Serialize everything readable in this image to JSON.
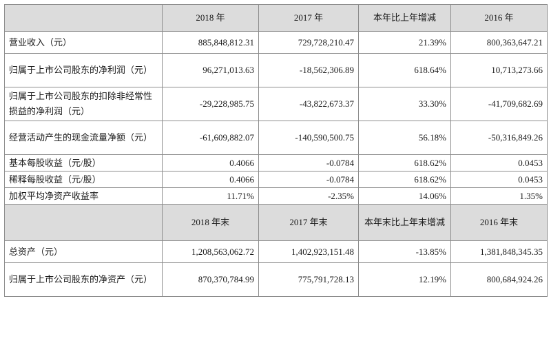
{
  "table1": {
    "headers": [
      "",
      "2018 年",
      "2017 年",
      "本年比上年增减",
      "2016 年"
    ],
    "rows": [
      {
        "label": "营业收入（元）",
        "c2018": "885,848,812.31",
        "c2017": "729,728,210.47",
        "change": "21.39%",
        "c2016": "800,363,647.21"
      },
      {
        "label": "归属于上市公司股东的净利润（元）",
        "c2018": "96,271,013.63",
        "c2017": "-18,562,306.89",
        "change": "618.64%",
        "c2016": "10,713,273.66"
      },
      {
        "label": "归属于上市公司股东的扣除非经常性损益的净利润（元）",
        "c2018": "-29,228,985.75",
        "c2017": "-43,822,673.37",
        "change": "33.30%",
        "c2016": "-41,709,682.69"
      },
      {
        "label": "经营活动产生的现金流量净额（元）",
        "c2018": "-61,609,882.07",
        "c2017": "-140,590,500.75",
        "change": "56.18%",
        "c2016": "-50,316,849.26"
      },
      {
        "label": "基本每股收益（元/股）",
        "c2018": "0.4066",
        "c2017": "-0.0784",
        "change": "618.62%",
        "c2016": "0.0453"
      },
      {
        "label": "稀释每股收益（元/股）",
        "c2018": "0.4066",
        "c2017": "-0.0784",
        "change": "618.62%",
        "c2016": "0.0453"
      },
      {
        "label": "加权平均净资产收益率",
        "c2018": "11.71%",
        "c2017": "-2.35%",
        "change": "14.06%",
        "c2016": "1.35%"
      }
    ]
  },
  "table2": {
    "headers": [
      "",
      "2018 年末",
      "2017 年末",
      "本年末比上年末增减",
      "2016 年末"
    ],
    "rows": [
      {
        "label": "总资产（元）",
        "c2018": "1,208,563,062.72",
        "c2017": "1,402,923,151.48",
        "change": "-13.85%",
        "c2016": "1,381,848,345.35"
      },
      {
        "label": "归属于上市公司股东的净资产（元）",
        "c2018": "870,370,784.99",
        "c2017": "775,791,728.13",
        "change": "12.19%",
        "c2016": "800,684,924.26"
      }
    ]
  }
}
